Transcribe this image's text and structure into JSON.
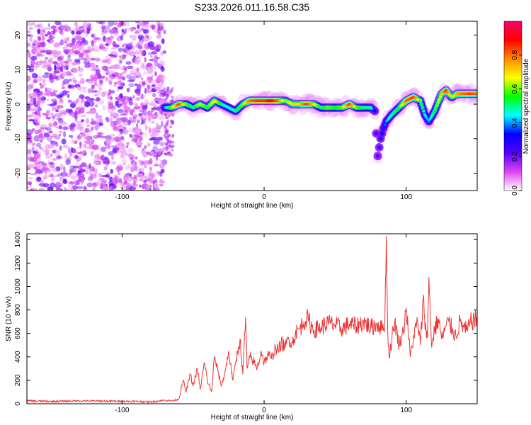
{
  "page": {
    "title": "S233.2026.011.16.58.C35"
  },
  "chart_data": [
    {
      "type": "heatmap",
      "xlabel": "Height of straight line (km)",
      "ylabel": "Frequency (Hz)",
      "xlim": [
        -167,
        150
      ],
      "ylim": [
        -25,
        24
      ],
      "xticks": [
        -100,
        0,
        100
      ],
      "yticks": [
        -20,
        -10,
        0,
        10,
        20
      ],
      "grid": false,
      "colorbar": {
        "label": "Normalized spectral amplitude",
        "range": [
          0.0,
          1.0
        ],
        "ticks": [
          0.0,
          0.2,
          0.4,
          0.6,
          0.8
        ],
        "colormap": [
          "#ffffff",
          "#dd44ee",
          "#5500ff",
          "#0000ff",
          "#00ffff",
          "#00ff00",
          "#ffff00",
          "#ff8800",
          "#ff0000",
          "#ff0066"
        ]
      },
      "noise_region_x": [
        -167,
        -70
      ],
      "ridge": {
        "x": [
          -70,
          -65,
          -60,
          -55,
          -50,
          -45,
          -40,
          -35,
          -30,
          -25,
          -20,
          -15,
          -10,
          -5,
          0,
          5,
          10,
          15,
          20,
          25,
          30,
          35,
          40,
          45,
          50,
          55,
          60,
          65,
          70,
          75,
          78,
          80,
          82,
          84,
          86,
          90,
          95,
          100,
          105,
          110,
          113,
          116,
          120,
          125,
          128,
          132,
          136,
          140,
          145,
          150
        ],
        "y": [
          -1,
          -1,
          0,
          0,
          -1,
          0,
          -1,
          1,
          0,
          -1,
          -2,
          0,
          1,
          1,
          1,
          1,
          1,
          1,
          0,
          0,
          0,
          0,
          -1,
          -1,
          -1,
          -1,
          0,
          -1,
          -1,
          -1,
          -2,
          -15,
          -10,
          -7,
          -5,
          -3,
          -1,
          1,
          2,
          1,
          -3,
          -5,
          -2,
          3,
          4,
          2,
          3,
          3,
          3,
          3
        ],
        "amplitude": [
          0.4,
          0.6,
          0.85,
          0.6,
          0.5,
          0.65,
          0.55,
          0.7,
          0.5,
          0.45,
          0.5,
          0.6,
          0.8,
          0.85,
          0.85,
          0.9,
          0.8,
          0.6,
          0.7,
          0.7,
          0.85,
          0.7,
          0.5,
          0.6,
          0.55,
          0.6,
          0.85,
          0.6,
          0.5,
          0.5,
          0.3,
          0.25,
          0.3,
          0.35,
          0.4,
          0.5,
          0.55,
          0.8,
          0.85,
          0.6,
          0.45,
          0.4,
          0.55,
          0.7,
          0.85,
          0.6,
          0.75,
          0.8,
          0.85,
          0.8
        ]
      }
    },
    {
      "type": "line",
      "xlabel": "Height of straight line (km)",
      "ylabel": "SNR (10 * v/v)",
      "xlim": [
        -167,
        150
      ],
      "ylim": [
        0,
        1450
      ],
      "xticks": [
        -100,
        0,
        100
      ],
      "yticks": [
        0,
        200,
        400,
        600,
        800,
        1000,
        1200,
        1400
      ],
      "grid": false,
      "series": [
        {
          "color": "#ee3333",
          "x": [
            -167,
            -150,
            -130,
            -110,
            -90,
            -80,
            -70,
            -65,
            -60,
            -57,
            -55,
            -52,
            -50,
            -47,
            -45,
            -42,
            -40,
            -37,
            -35,
            -32,
            -30,
            -27,
            -25,
            -22,
            -20,
            -17,
            -15,
            -13,
            -12,
            -10,
            -7,
            -5,
            -2,
            0,
            3,
            5,
            8,
            10,
            12,
            15,
            17,
            20,
            22,
            25,
            28,
            30,
            35,
            40,
            45,
            50,
            55,
            60,
            65,
            70,
            75,
            80,
            83,
            85,
            86,
            87,
            88,
            90,
            92,
            95,
            98,
            100,
            103,
            105,
            108,
            110,
            112,
            114,
            115,
            116,
            118,
            120,
            123,
            125,
            128,
            130,
            133,
            135,
            138,
            140,
            143,
            145,
            148,
            150
          ],
          "y": [
            25,
            20,
            25,
            22,
            20,
            15,
            30,
            25,
            40,
            200,
            100,
            250,
            150,
            300,
            120,
            350,
            200,
            100,
            400,
            250,
            150,
            300,
            450,
            200,
            350,
            550,
            250,
            740,
            300,
            400,
            350,
            300,
            450,
            350,
            420,
            380,
            480,
            450,
            520,
            480,
            560,
            520,
            600,
            640,
            700,
            730,
            630,
            650,
            690,
            670,
            640,
            680,
            660,
            700,
            650,
            680,
            640,
            700,
            1430,
            620,
            400,
            560,
            700,
            500,
            620,
            820,
            400,
            560,
            700,
            500,
            900,
            620,
            560,
            1080,
            480,
            640,
            720,
            550,
            660,
            700,
            620,
            580,
            700,
            660,
            620,
            690,
            720,
            700
          ]
        }
      ]
    }
  ]
}
